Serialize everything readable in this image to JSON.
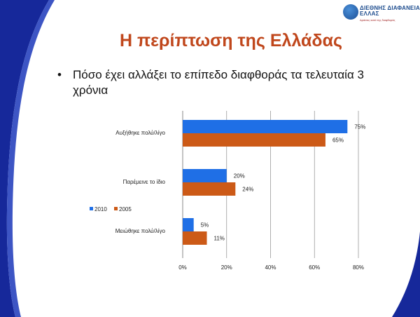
{
  "logo": {
    "org_line1": "ΔΙΕΘΝΗΣ ΔΙΑΦΑΝΕΙΑ",
    "org_line2": "ΕΛΛΑΣ",
    "tagline": "Δράσεις κατά της διαφθοράς"
  },
  "slide": {
    "title": "Η περίπτωση της Ελλάδας",
    "bullet": "Πόσο έχει αλλάξει το επίπεδο διαφθοράς τα τελευταία 3 χρόνια"
  },
  "colors": {
    "series_2010": "#1f6fe6",
    "series_2005": "#cc5a17",
    "accent_blue": "#1a3fb0",
    "title": "#c0471c"
  },
  "chart_data": {
    "type": "bar",
    "orientation": "horizontal",
    "categories": [
      "Αυξήθηκε πολύ/λίγο",
      "Παρέμεινε το ίδιο",
      "Μειώθηκε πολύ/λίγο"
    ],
    "series": [
      {
        "name": "2010",
        "values": [
          75,
          20,
          5
        ],
        "labels": [
          "75%",
          "20%",
          "5%"
        ]
      },
      {
        "name": "2005",
        "values": [
          65,
          24,
          11
        ],
        "labels": [
          "65%",
          "24%",
          "11%"
        ]
      }
    ],
    "x_ticks": [
      "0%",
      "20%",
      "40%",
      "60%",
      "80%"
    ],
    "xlim": [
      0,
      80
    ],
    "grid": true,
    "legend_position": "left"
  }
}
